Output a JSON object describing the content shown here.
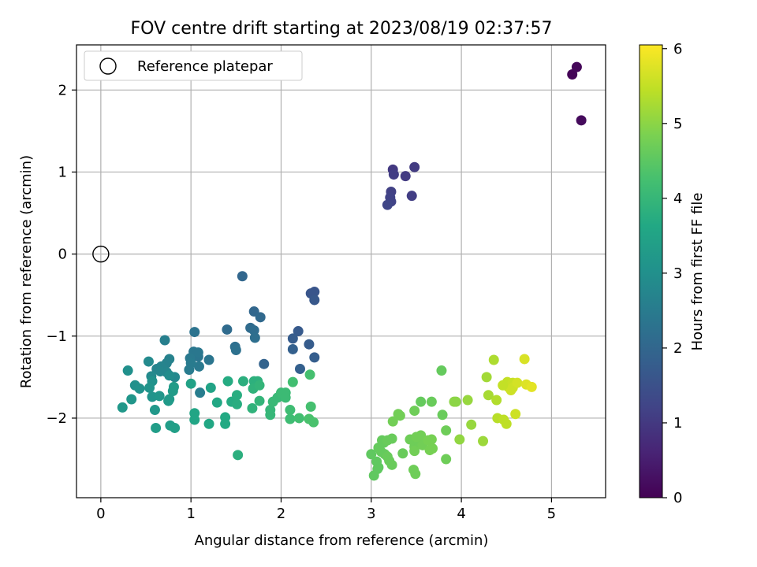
{
  "chart_data": {
    "type": "scatter",
    "title": "FOV centre drift starting at 2023/08/19 02:37:57",
    "xlabel": "Angular distance from reference (arcmin)",
    "ylabel": "Rotation from reference (arcmin)",
    "xlim": [
      -0.27,
      5.6
    ],
    "ylim": [
      -2.97,
      2.55
    ],
    "xticks": [
      0,
      1,
      2,
      3,
      4,
      5
    ],
    "xtick_labels": [
      "0",
      "1",
      "2",
      "3",
      "4",
      "5"
    ],
    "yticks": [
      -2,
      -1,
      0,
      1,
      2
    ],
    "ytick_labels": [
      "−2",
      "−1",
      "0",
      "1",
      "2"
    ],
    "grid": true,
    "legend": {
      "position": "top-left",
      "label": "Reference platepar"
    },
    "reference_point": {
      "x": 0,
      "y": 0
    },
    "colorbar": {
      "label": "Hours from first FF file",
      "min": 0,
      "max": 6.05,
      "ticks": [
        0,
        1,
        2,
        3,
        4,
        5,
        6
      ],
      "tick_labels": [
        "0",
        "1",
        "2",
        "3",
        "4",
        "5",
        "6"
      ],
      "colormap": "viridis"
    },
    "points": [
      [
        5.23,
        2.19,
        0.05
      ],
      [
        5.28,
        2.28,
        0.1
      ],
      [
        5.33,
        1.63,
        0.15
      ],
      [
        3.24,
        1.03,
        1.0
      ],
      [
        3.48,
        1.06,
        1.05
      ],
      [
        3.38,
        0.95,
        1.05
      ],
      [
        3.25,
        0.97,
        1.1
      ],
      [
        3.45,
        0.71,
        1.1
      ],
      [
        3.22,
        0.76,
        1.15
      ],
      [
        3.21,
        0.69,
        1.2
      ],
      [
        3.22,
        0.64,
        1.2
      ],
      [
        3.18,
        0.6,
        1.25
      ],
      [
        2.37,
        -0.46,
        1.6
      ],
      [
        2.33,
        -0.48,
        1.6
      ],
      [
        2.37,
        -0.56,
        1.65
      ],
      [
        2.19,
        -0.94,
        1.7
      ],
      [
        2.13,
        -1.03,
        1.75
      ],
      [
        2.31,
        -1.1,
        1.75
      ],
      [
        2.37,
        -1.26,
        1.8
      ],
      [
        2.13,
        -1.16,
        1.85
      ],
      [
        2.21,
        -1.4,
        1.85
      ],
      [
        1.81,
        -1.34,
        1.9
      ],
      [
        1.57,
        -0.27,
        2.0
      ],
      [
        1.7,
        -0.7,
        2.0
      ],
      [
        1.77,
        -0.77,
        2.05
      ],
      [
        1.4,
        -0.92,
        2.1
      ],
      [
        1.66,
        -0.9,
        2.1
      ],
      [
        1.7,
        -0.93,
        2.15
      ],
      [
        1.71,
        -1.02,
        2.2
      ],
      [
        1.49,
        -1.13,
        2.2
      ],
      [
        1.5,
        -1.17,
        2.25
      ],
      [
        1.04,
        -0.95,
        2.3
      ],
      [
        1.2,
        -1.29,
        2.35
      ],
      [
        1.08,
        -1.25,
        2.35
      ],
      [
        1.03,
        -1.19,
        2.4
      ],
      [
        1.08,
        -1.2,
        2.4
      ],
      [
        0.99,
        -1.27,
        2.45
      ],
      [
        1.09,
        -1.37,
        2.45
      ],
      [
        1.0,
        -1.33,
        2.5
      ],
      [
        0.98,
        -1.41,
        2.5
      ],
      [
        1.1,
        -1.69,
        2.55
      ],
      [
        0.71,
        -1.05,
        2.6
      ],
      [
        0.76,
        -1.28,
        2.65
      ],
      [
        0.73,
        -1.33,
        2.65
      ],
      [
        0.67,
        -1.37,
        2.7
      ],
      [
        0.62,
        -1.4,
        2.7
      ],
      [
        0.66,
        -1.43,
        2.75
      ],
      [
        0.73,
        -1.44,
        2.75
      ],
      [
        0.82,
        -1.5,
        2.8
      ],
      [
        0.53,
        -1.31,
        2.85
      ],
      [
        0.56,
        -1.49,
        2.85
      ],
      [
        0.76,
        -1.48,
        2.9
      ],
      [
        0.3,
        -1.42,
        3.0
      ],
      [
        0.38,
        -1.6,
        3.0
      ],
      [
        0.43,
        -1.64,
        3.05
      ],
      [
        0.57,
        -1.55,
        3.05
      ],
      [
        0.54,
        -1.63,
        3.1
      ],
      [
        0.57,
        -1.74,
        3.1
      ],
      [
        0.65,
        -1.73,
        3.15
      ],
      [
        0.34,
        -1.77,
        3.15
      ],
      [
        0.24,
        -1.87,
        3.2
      ],
      [
        0.6,
        -1.9,
        3.2
      ],
      [
        0.76,
        -1.77,
        3.25
      ],
      [
        0.75,
        -1.79,
        3.25
      ],
      [
        0.8,
        -1.67,
        3.3
      ],
      [
        0.81,
        -1.62,
        3.3
      ],
      [
        0.61,
        -2.12,
        3.35
      ],
      [
        0.77,
        -2.09,
        3.35
      ],
      [
        0.82,
        -2.12,
        3.4
      ],
      [
        1.0,
        -1.58,
        3.45
      ],
      [
        1.22,
        -1.63,
        3.5
      ],
      [
        1.04,
        -1.94,
        3.55
      ],
      [
        1.04,
        -2.02,
        3.55
      ],
      [
        1.2,
        -2.07,
        3.6
      ],
      [
        1.29,
        -1.81,
        3.6
      ],
      [
        1.38,
        -1.99,
        3.65
      ],
      [
        1.38,
        -2.07,
        3.65
      ],
      [
        1.41,
        -1.55,
        3.7
      ],
      [
        1.45,
        -1.8,
        3.7
      ],
      [
        1.51,
        -1.72,
        3.75
      ],
      [
        1.51,
        -1.83,
        3.75
      ],
      [
        1.52,
        -2.45,
        3.8
      ],
      [
        1.58,
        -1.55,
        3.8
      ],
      [
        1.7,
        -1.55,
        3.85
      ],
      [
        1.74,
        -1.55,
        3.85
      ],
      [
        1.69,
        -1.64,
        3.9
      ],
      [
        1.68,
        -1.88,
        3.9
      ],
      [
        1.76,
        -1.79,
        3.95
      ],
      [
        1.76,
        -1.6,
        3.95
      ],
      [
        1.88,
        -1.9,
        4.0
      ],
      [
        1.88,
        -1.96,
        4.0
      ],
      [
        1.91,
        -1.8,
        4.05
      ],
      [
        1.96,
        -1.75,
        4.05
      ],
      [
        2.0,
        -1.69,
        4.1
      ],
      [
        2.05,
        -1.69,
        4.1
      ],
      [
        2.05,
        -1.75,
        4.1
      ],
      [
        2.1,
        -1.9,
        4.15
      ],
      [
        2.1,
        -2.01,
        4.15
      ],
      [
        2.13,
        -1.56,
        4.2
      ],
      [
        2.2,
        -2.0,
        4.2
      ],
      [
        2.32,
        -1.47,
        4.25
      ],
      [
        2.33,
        -1.86,
        4.25
      ],
      [
        2.31,
        -2.01,
        4.3
      ],
      [
        2.36,
        -2.05,
        4.3
      ],
      [
        3.78,
        -1.42,
        4.6
      ],
      [
        3.55,
        -1.8,
        4.6
      ],
      [
        3.67,
        -1.8,
        4.65
      ],
      [
        3.79,
        -1.96,
        4.65
      ],
      [
        3.83,
        -2.15,
        4.7
      ],
      [
        3.83,
        -2.5,
        4.7
      ],
      [
        3.48,
        -1.91,
        4.7
      ],
      [
        3.32,
        -1.97,
        4.75
      ],
      [
        3.3,
        -1.95,
        4.75
      ],
      [
        3.24,
        -2.04,
        4.75
      ],
      [
        3.0,
        -2.44,
        4.55
      ],
      [
        3.03,
        -2.7,
        4.55
      ],
      [
        3.06,
        -2.53,
        4.55
      ],
      [
        3.07,
        -2.62,
        4.55
      ],
      [
        3.08,
        -2.6,
        4.55
      ],
      [
        3.08,
        -2.36,
        4.6
      ],
      [
        3.11,
        -2.41,
        4.6
      ],
      [
        3.12,
        -2.27,
        4.6
      ],
      [
        3.14,
        -2.3,
        4.6
      ],
      [
        3.15,
        -2.44,
        4.6
      ],
      [
        3.18,
        -2.47,
        4.65
      ],
      [
        3.2,
        -2.52,
        4.65
      ],
      [
        3.23,
        -2.57,
        4.65
      ],
      [
        3.18,
        -2.27,
        4.65
      ],
      [
        3.23,
        -2.25,
        4.65
      ],
      [
        3.35,
        -2.43,
        4.65
      ],
      [
        3.43,
        -2.26,
        4.7
      ],
      [
        3.47,
        -2.63,
        4.7
      ],
      [
        3.48,
        -2.35,
        4.7
      ],
      [
        3.49,
        -2.68,
        4.7
      ],
      [
        3.53,
        -2.3,
        4.7
      ],
      [
        3.55,
        -2.21,
        4.75
      ],
      [
        3.5,
        -2.23,
        4.75
      ],
      [
        3.48,
        -2.4,
        4.75
      ],
      [
        3.57,
        -2.33,
        4.75
      ],
      [
        3.63,
        -2.27,
        4.8
      ],
      [
        3.65,
        -2.39,
        4.8
      ],
      [
        3.67,
        -2.26,
        4.8
      ],
      [
        3.68,
        -2.37,
        4.8
      ],
      [
        3.92,
        -1.8,
        5.0
      ],
      [
        3.94,
        -1.8,
        5.0
      ],
      [
        3.98,
        -2.26,
        5.05
      ],
      [
        4.07,
        -1.78,
        5.1
      ],
      [
        4.11,
        -2.08,
        5.1
      ],
      [
        4.24,
        -2.28,
        5.15
      ],
      [
        4.28,
        -1.5,
        5.2
      ],
      [
        4.3,
        -1.72,
        5.25
      ],
      [
        4.36,
        -1.29,
        5.3
      ],
      [
        4.39,
        -1.78,
        5.35
      ],
      [
        4.4,
        -2.0,
        5.4
      ],
      [
        4.47,
        -2.02,
        5.45
      ],
      [
        4.5,
        -2.07,
        5.45
      ],
      [
        4.51,
        -1.56,
        5.5
      ],
      [
        4.52,
        -1.62,
        5.55
      ],
      [
        4.57,
        -1.57,
        5.55
      ],
      [
        4.57,
        -1.63,
        5.6
      ],
      [
        4.6,
        -1.95,
        5.6
      ],
      [
        4.62,
        -1.57,
        5.65
      ],
      [
        4.7,
        -1.28,
        5.7
      ],
      [
        4.72,
        -1.59,
        5.75
      ],
      [
        4.78,
        -1.62,
        5.8
      ],
      [
        4.55,
        -1.66,
        5.6
      ],
      [
        4.46,
        -1.6,
        5.5
      ]
    ]
  }
}
